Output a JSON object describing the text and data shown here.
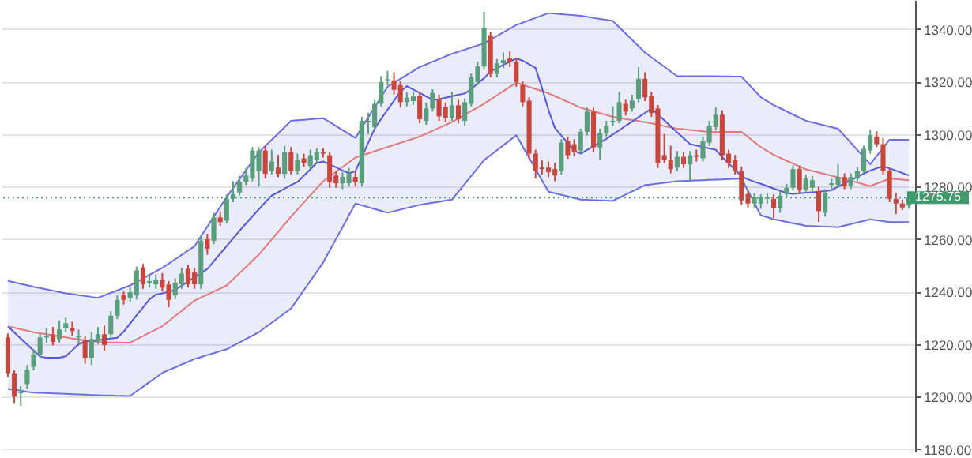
{
  "chart_data": {
    "type": "candlestick",
    "categories": [
      null,
      null,
      null,
      null,
      null,
      null,
      null,
      null,
      null,
      null,
      null,
      null,
      null,
      null,
      null,
      null,
      null,
      null,
      null,
      null,
      null,
      null,
      null,
      null,
      null,
      null,
      null,
      null,
      null,
      null,
      null,
      null,
      null,
      null,
      null,
      null,
      null,
      null,
      null,
      null,
      null,
      null,
      null,
      null,
      null,
      null,
      null,
      null,
      null,
      null,
      null,
      null,
      null,
      null,
      null,
      null,
      null,
      null,
      null,
      null,
      null,
      null,
      null,
      null,
      null,
      null,
      null,
      null,
      null,
      null,
      null,
      null,
      null,
      null,
      null,
      null,
      null,
      null,
      null,
      null,
      null,
      null,
      null,
      null,
      null,
      null,
      null,
      null,
      null,
      null,
      null,
      null,
      null,
      null,
      null,
      null,
      null,
      null,
      null,
      null,
      null,
      null,
      null,
      null,
      null,
      null,
      null,
      null,
      null,
      null,
      null,
      null,
      null,
      null,
      null,
      null,
      null,
      null,
      null,
      null,
      null,
      null,
      null,
      null,
      null,
      null,
      null,
      null,
      null,
      null,
      null,
      null,
      null,
      null,
      null,
      null,
      null,
      null,
      null,
      null,
      null
    ],
    "ohlc": [
      [
        1222.5,
        1224.0,
        1207.4,
        1208.9
      ],
      [
        1208.9,
        1210.0,
        1197.5,
        1200.0
      ],
      [
        1201.2,
        1204.0,
        1196.5,
        1201.8
      ],
      [
        1204.7,
        1212.0,
        1203.0,
        1210.1
      ],
      [
        1211.3,
        1218.0,
        1210.0,
        1216.0
      ],
      [
        1216.0,
        1224.0,
        1215.0,
        1222.5
      ],
      [
        1222.5,
        1226.0,
        1220.5,
        1223.1
      ],
      [
        1223.7,
        1226.5,
        1219.5,
        1220.8
      ],
      [
        1221.9,
        1229.0,
        1220.5,
        1225.5
      ],
      [
        1226.1,
        1230.0,
        1224.5,
        1227.9
      ],
      [
        1226.1,
        1228.5,
        1223.0,
        1224.9
      ],
      [
        1222.5,
        1225.5,
        1220.0,
        1223.1
      ],
      [
        1221.3,
        1223.0,
        1212.5,
        1214.8
      ],
      [
        1214.8,
        1224.5,
        1212.0,
        1221.9
      ],
      [
        1221.3,
        1226.5,
        1220.0,
        1223.7
      ],
      [
        1223.7,
        1227.0,
        1217.5,
        1219.6
      ],
      [
        1223.7,
        1232.5,
        1222.5,
        1230.8
      ],
      [
        1230.8,
        1238.5,
        1229.5,
        1236.8
      ],
      [
        1238.5,
        1240.0,
        1235.0,
        1236.8
      ],
      [
        1237.4,
        1241.5,
        1236.0,
        1239.7
      ],
      [
        1238.5,
        1249.5,
        1237.0,
        1248.0
      ],
      [
        1249.2,
        1250.5,
        1241.0,
        1242.7
      ],
      [
        1243.3,
        1246.0,
        1241.5,
        1243.9
      ],
      [
        1242.7,
        1246.5,
        1241.0,
        1244.5
      ],
      [
        1244.5,
        1247.0,
        1240.0,
        1241.5
      ],
      [
        1242.7,
        1244.0,
        1234.0,
        1236.8
      ],
      [
        1238.5,
        1245.0,
        1237.0,
        1243.3
      ],
      [
        1242.7,
        1249.0,
        1241.0,
        1246.8
      ],
      [
        1248.6,
        1250.0,
        1241.5,
        1242.7
      ],
      [
        1247.4,
        1249.0,
        1241.0,
        1242.7
      ],
      [
        1242.7,
        1261.0,
        1241.0,
        1259.3
      ],
      [
        1259.9,
        1262.0,
        1254.0,
        1256.3
      ],
      [
        1259.3,
        1270.0,
        1258.0,
        1268.2
      ],
      [
        1268.2,
        1270.5,
        1265.0,
        1266.4
      ],
      [
        1267.0,
        1277.0,
        1266.0,
        1275.3
      ],
      [
        1275.3,
        1282.0,
        1274.0,
        1277.1
      ],
      [
        1277.7,
        1284.0,
        1276.5,
        1281.8
      ],
      [
        1281.8,
        1287.0,
        1280.5,
        1284.2
      ],
      [
        1283.0,
        1295.0,
        1282.0,
        1293.7
      ],
      [
        1286.0,
        1295.0,
        1280.0,
        1293.7
      ],
      [
        1293.7,
        1295.5,
        1283.0,
        1284.8
      ],
      [
        1286.0,
        1294.0,
        1284.5,
        1289.5
      ],
      [
        1287.2,
        1292.0,
        1283.5,
        1284.8
      ],
      [
        1284.8,
        1295.5,
        1283.0,
        1293.1
      ],
      [
        1293.1,
        1295.0,
        1284.5,
        1286.0
      ],
      [
        1286.0,
        1292.5,
        1284.5,
        1290.1
      ],
      [
        1290.7,
        1292.5,
        1287.5,
        1289.0
      ],
      [
        1287.8,
        1294.0,
        1286.5,
        1291.9
      ],
      [
        1290.1,
        1294.5,
        1289.0,
        1293.1
      ],
      [
        1293.1,
        1294.5,
        1291.0,
        1292.5
      ],
      [
        1291.9,
        1293.0,
        1279.5,
        1281.8
      ],
      [
        1284.2,
        1286.0,
        1279.5,
        1281.2
      ],
      [
        1281.2,
        1285.5,
        1279.0,
        1283.6
      ],
      [
        1281.2,
        1287.0,
        1280.0,
        1284.8
      ],
      [
        1283.6,
        1285.5,
        1280.0,
        1281.8
      ],
      [
        1281.2,
        1306.5,
        1280.0,
        1305.0
      ],
      [
        1304.4,
        1308.0,
        1300.0,
        1305.0
      ],
      [
        1302.6,
        1313.0,
        1301.5,
        1311.5
      ],
      [
        1311.5,
        1322.0,
        1310.5,
        1319.8
      ],
      [
        1320.4,
        1324.0,
        1318.5,
        1320.8
      ],
      [
        1320.4,
        1323.5,
        1315.0,
        1316.8
      ],
      [
        1318.6,
        1320.0,
        1310.0,
        1312.1
      ],
      [
        1312.1,
        1316.0,
        1310.5,
        1313.9
      ],
      [
        1312.5,
        1316.0,
        1311.0,
        1314.4
      ],
      [
        1314.4,
        1316.0,
        1304.0,
        1305.6
      ],
      [
        1305.0,
        1312.0,
        1303.5,
        1309.7
      ],
      [
        1309.7,
        1317.0,
        1308.5,
        1315.6
      ],
      [
        1313.3,
        1315.0,
        1305.0,
        1306.7
      ],
      [
        1310.3,
        1312.0,
        1304.5,
        1306.1
      ],
      [
        1306.1,
        1316.0,
        1305.0,
        1310.9
      ],
      [
        1310.9,
        1313.0,
        1304.0,
        1305.6
      ],
      [
        1305.0,
        1313.5,
        1303.0,
        1312.1
      ],
      [
        1311.5,
        1323.0,
        1310.5,
        1321.6
      ],
      [
        1319.8,
        1327.5,
        1318.5,
        1325.7
      ],
      [
        1325.7,
        1346.5,
        1324.5,
        1340.5
      ],
      [
        1337.6,
        1339.0,
        1321.5,
        1322.8
      ],
      [
        1322.8,
        1328.5,
        1321.5,
        1326.9
      ],
      [
        1326.9,
        1331.0,
        1325.0,
        1328.1
      ],
      [
        1328.7,
        1331.5,
        1325.5,
        1327.5
      ],
      [
        1327.5,
        1329.0,
        1318.0,
        1319.8
      ],
      [
        1318.6,
        1320.0,
        1310.5,
        1312.1
      ],
      [
        1312.7,
        1314.0,
        1290.5,
        1292.5
      ],
      [
        1292.5,
        1294.0,
        1283.0,
        1286.0
      ],
      [
        1287.2,
        1290.0,
        1284.5,
        1286.6
      ],
      [
        1287.2,
        1289.5,
        1283.5,
        1285.4
      ],
      [
        1286.6,
        1289.0,
        1282.0,
        1284.2
      ],
      [
        1286.0,
        1298.0,
        1284.5,
        1296.7
      ],
      [
        1297.3,
        1299.0,
        1290.5,
        1291.9
      ],
      [
        1296.1,
        1298.0,
        1291.5,
        1293.0
      ],
      [
        1293.7,
        1302.0,
        1292.5,
        1300.8
      ],
      [
        1300.8,
        1310.0,
        1299.5,
        1308.5
      ],
      [
        1308.5,
        1310.0,
        1293.0,
        1294.9
      ],
      [
        1294.9,
        1302.0,
        1290.0,
        1300.2
      ],
      [
        1300.2,
        1305.0,
        1299.0,
        1303.2
      ],
      [
        1304.4,
        1310.5,
        1303.0,
        1305.0
      ],
      [
        1305.0,
        1316.0,
        1304.0,
        1312.1
      ],
      [
        1311.5,
        1313.0,
        1307.0,
        1308.5
      ],
      [
        1309.7,
        1315.0,
        1308.5,
        1312.7
      ],
      [
        1313.3,
        1325.5,
        1312.0,
        1321.0
      ],
      [
        1321.0,
        1323.5,
        1312.5,
        1313.9
      ],
      [
        1314.4,
        1316.0,
        1306.5,
        1307.9
      ],
      [
        1309.7,
        1311.0,
        1287.0,
        1288.9
      ],
      [
        1291.9,
        1300.0,
        1289.0,
        1290.1
      ],
      [
        1290.1,
        1295.5,
        1285.0,
        1286.6
      ],
      [
        1287.2,
        1293.5,
        1286.0,
        1291.3
      ],
      [
        1291.3,
        1293.0,
        1287.0,
        1288.4
      ],
      [
        1288.4,
        1293.5,
        1282.0,
        1291.9
      ],
      [
        1291.9,
        1294.0,
        1289.5,
        1291.3
      ],
      [
        1290.7,
        1299.0,
        1289.5,
        1297.3
      ],
      [
        1296.7,
        1305.0,
        1295.5,
        1303.2
      ],
      [
        1302.6,
        1310.0,
        1301.5,
        1307.3
      ],
      [
        1307.3,
        1309.0,
        1290.0,
        1291.9
      ],
      [
        1292.5,
        1294.0,
        1287.0,
        1288.9
      ],
      [
        1290.1,
        1292.0,
        1284.5,
        1286.0
      ],
      [
        1286.0,
        1287.5,
        1273.0,
        1274.7
      ],
      [
        1277.1,
        1278.5,
        1272.0,
        1273.5
      ],
      [
        1273.5,
        1277.5,
        1272.0,
        1275.9
      ],
      [
        1273.5,
        1277.0,
        1271.5,
        1275.9
      ],
      [
        1275.3,
        1277.5,
        1273.5,
        1275.9
      ],
      [
        1275.3,
        1277.0,
        1268.0,
        1271.8
      ],
      [
        1271.8,
        1278.0,
        1270.0,
        1276.5
      ],
      [
        1277.1,
        1281.0,
        1276.0,
        1279.5
      ],
      [
        1279.5,
        1288.0,
        1278.5,
        1286.6
      ],
      [
        1286.6,
        1288.0,
        1277.5,
        1278.9
      ],
      [
        1278.9,
        1284.5,
        1277.5,
        1283.0
      ],
      [
        1279.5,
        1284.0,
        1278.0,
        1282.4
      ],
      [
        1278.3,
        1280.0,
        1266.5,
        1270.6
      ],
      [
        1270.0,
        1279.0,
        1268.5,
        1277.7
      ],
      [
        1280.6,
        1283.0,
        1279.0,
        1281.2
      ],
      [
        1280.6,
        1288.5,
        1279.5,
        1283.6
      ],
      [
        1283.6,
        1285.0,
        1279.0,
        1280.1
      ],
      [
        1280.1,
        1285.0,
        1279.0,
        1283.6
      ],
      [
        1283.0,
        1287.5,
        1282.0,
        1286.0
      ],
      [
        1286.0,
        1295.5,
        1285.0,
        1294.3
      ],
      [
        1293.7,
        1301.5,
        1292.5,
        1299.6
      ],
      [
        1299.0,
        1301.0,
        1295.0,
        1296.1
      ],
      [
        1296.1,
        1298.5,
        1284.5,
        1286.0
      ],
      [
        1286.0,
        1287.0,
        1274.0,
        1275.3
      ],
      [
        1275.3,
        1277.5,
        1269.5,
        1273.5
      ],
      [
        1273.5,
        1275.0,
        1271.0,
        1272.0
      ],
      [
        1272.8,
        1276.5,
        1271.5,
        1275.75
      ]
    ],
    "colors": [
      "#c8473c",
      "#c8473c",
      "#5a9e7c",
      "#5a9e7c",
      "#5a9e7c",
      "#5a9e7c",
      "#5a9e7c",
      "#c8473c",
      "#5a9e7c",
      "#5a9e7c",
      "#c8473c",
      "#5a9e7c",
      "#c8473c",
      "#5a9e7c",
      "#5a9e7c",
      "#c8473c",
      "#5a9e7c",
      "#5a9e7c",
      "#c8473c",
      "#5a9e7c",
      "#5a9e7c",
      "#c8473c",
      "#5a9e7c",
      "#5a9e7c",
      "#c8473c",
      "#c8473c",
      "#5a9e7c",
      "#5a9e7c",
      "#c8473c",
      "#c8473c",
      "#5a9e7c",
      "#c8473c",
      "#5a9e7c",
      "#c8473c",
      "#5a9e7c",
      "#5a9e7c",
      "#5a9e7c",
      "#5a9e7c",
      "#5a9e7c",
      "#5a9e7c",
      "#c8473c",
      "#5a9e7c",
      "#c8473c",
      "#5a9e7c",
      "#c8473c",
      "#5a9e7c",
      "#c8473c",
      "#5a9e7c",
      "#5a9e7c",
      "#c8473c",
      "#c8473c",
      "#c8473c",
      "#5a9e7c",
      "#5a9e7c",
      "#c8473c",
      "#5a9e7c",
      "#5a9e7c",
      "#5a9e7c",
      "#5a9e7c",
      "#5a9e7c",
      "#c8473c",
      "#c8473c",
      "#5a9e7c",
      "#5a9e7c",
      "#c8473c",
      "#5a9e7c",
      "#5a9e7c",
      "#c8473c",
      "#c8473c",
      "#5a9e7c",
      "#c8473c",
      "#5a9e7c",
      "#5a9e7c",
      "#5a9e7c",
      "#5a9e7c",
      "#c8473c",
      "#5a9e7c",
      "#5a9e7c",
      "#c8473c",
      "#c8473c",
      "#c8473c",
      "#c8473c",
      "#c8473c",
      "#c8473c",
      "#c8473c",
      "#c8473c",
      "#5a9e7c",
      "#c8473c",
      "#c8473c",
      "#5a9e7c",
      "#5a9e7c",
      "#c8473c",
      "#5a9e7c",
      "#5a9e7c",
      "#5a9e7c",
      "#5a9e7c",
      "#c8473c",
      "#5a9e7c",
      "#5a9e7c",
      "#c8473c",
      "#c8473c",
      "#c8473c",
      "#c8473c",
      "#c8473c",
      "#5a9e7c",
      "#c8473c",
      "#5a9e7c",
      "#c8473c",
      "#5a9e7c",
      "#5a9e7c",
      "#5a9e7c",
      "#c8473c",
      "#c8473c",
      "#c8473c",
      "#c8473c",
      "#c8473c",
      "#5a9e7c",
      "#5a9e7c",
      "#5a9e7c",
      "#c8473c",
      "#5a9e7c",
      "#5a9e7c",
      "#5a9e7c",
      "#c8473c",
      "#5a9e7c",
      "#5a9e7c",
      "#c8473c",
      "#5a9e7c",
      "#5a9e7c",
      "#5a9e7c",
      "#c8473c",
      "#5a9e7c",
      "#5a9e7c",
      "#5a9e7c",
      "#5a9e7c",
      "#c8473c",
      "#c8473c",
      "#c8473c",
      "#c8473c",
      "#c8473c",
      "#5a9e7c"
    ],
    "series": [
      {
        "type": "line",
        "color": "#6b6ee0",
        "values": [
          1244.0,
          1243.5,
          1242.9,
          1242.4,
          1241.8,
          1241.3,
          1240.8,
          1240.3,
          1239.8,
          1239.3,
          1239.0,
          1238.6,
          1238.3,
          1237.9,
          1237.6,
          1238.5,
          1239.5,
          1240.4,
          1241.4,
          1242.3,
          1243.6,
          1245.0,
          1246.3,
          1247.7,
          1249.0,
          1250.6,
          1252.3,
          1253.9,
          1255.6,
          1257.2,
          1261.0,
          1264.7,
          1268.5,
          1272.2,
          1276.0,
          1279.4,
          1282.8,
          1286.2,
          1289.6,
          1293.0,
          1295.4,
          1297.8,
          1300.2,
          1302.6,
          1305.0,
          1305.2,
          1305.4,
          1305.6,
          1305.8,
          1306.0,
          1304.5,
          1303.0,
          1301.5,
          1300.0,
          1298.5,
          1302.4,
          1306.3,
          1310.2,
          1314.1,
          1318.0,
          1319.5,
          1321.0,
          1322.5,
          1324.0,
          1325.5,
          1326.5,
          1327.5,
          1328.5,
          1329.5,
          1330.5,
          1331.3,
          1332.1,
          1332.9,
          1333.7,
          1334.5,
          1335.9,
          1337.3,
          1338.7,
          1340.1,
          1341.5,
          1342.4,
          1343.3,
          1344.2,
          1345.1,
          1346.0,
          1345.8,
          1345.6,
          1345.4,
          1345.2,
          1345.0,
          1344.6,
          1344.2,
          1343.8,
          1343.4,
          1343.0,
          1340.6,
          1338.2,
          1335.8,
          1333.4,
          1331.0,
          1329.2,
          1327.4,
          1325.6,
          1323.8,
          1322.0,
          1322.0,
          1322.0,
          1322.0,
          1322.0,
          1322.0,
          1322.0,
          1321.9,
          1321.9,
          1321.8,
          1321.8,
          1319.2,
          1316.6,
          1314.0,
          1312.5,
          1311.0,
          1309.8,
          1308.6,
          1307.4,
          1306.2,
          1305.0,
          1304.4,
          1303.8,
          1303.2,
          1302.6,
          1302.0,
          1299.3,
          1296.6,
          1293.9,
          1291.2,
          1288.5,
          1291.6,
          1294.7,
          1297.8,
          1297.8,
          1297.8,
          1297.8
        ],
        "upper": [
          1244.0,
          1243.5,
          1242.9,
          1242.4,
          1241.8,
          1241.3,
          1240.8,
          1240.3,
          1239.8,
          1239.3,
          1239.0,
          1238.6,
          1238.3,
          1237.9,
          1237.6,
          1238.5,
          1239.5,
          1240.4,
          1241.4,
          1242.3,
          1243.6,
          1245.0,
          1246.3,
          1247.7,
          1249.0,
          1250.6,
          1252.3,
          1253.9,
          1255.6,
          1257.2,
          1261.0,
          1264.7,
          1268.5,
          1272.2,
          1276.0,
          1279.4,
          1282.8,
          1286.2,
          1289.6,
          1293.0,
          1295.4,
          1297.8,
          1300.2,
          1302.6,
          1305.0,
          1305.2,
          1305.4,
          1305.6,
          1305.8,
          1306.0,
          1304.5,
          1303.0,
          1301.5,
          1300.0,
          1298.5,
          1302.4,
          1306.3,
          1310.2,
          1314.1,
          1318.0,
          1319.5,
          1321.0,
          1322.5,
          1324.0,
          1325.5,
          1326.5,
          1327.5,
          1328.5,
          1329.5,
          1330.5,
          1331.3,
          1332.1,
          1332.9,
          1333.7,
          1334.5,
          1335.9,
          1337.3,
          1338.7,
          1340.1,
          1341.5,
          1342.4,
          1343.3,
          1344.2,
          1345.1,
          1346.0,
          1345.8,
          1345.6,
          1345.4,
          1345.2,
          1345.0,
          1344.6,
          1344.2,
          1343.8,
          1343.4,
          1343.0,
          1340.6,
          1338.2,
          1335.8,
          1333.4,
          1331.0,
          1329.2,
          1327.4,
          1325.6,
          1323.8,
          1322.0,
          1322.0,
          1322.0,
          1322.0,
          1322.0,
          1322.0,
          1322.0,
          1321.9,
          1321.9,
          1321.8,
          1321.8,
          1319.2,
          1316.6,
          1314.0,
          1312.5,
          1311.0,
          1309.8,
          1308.6,
          1307.4,
          1306.2,
          1305.0,
          1304.4,
          1303.8,
          1303.2,
          1302.6,
          1302.0,
          1299.3,
          1296.6,
          1293.9,
          1291.2,
          1288.5,
          1291.6,
          1294.7,
          1297.8,
          1297.8,
          1297.8,
          1297.8
        ],
        "lower": [
          1202.9,
          1202.5,
          1202.2,
          1201.8,
          1201.5,
          1201.4,
          1201.3,
          1201.2,
          1201.1,
          1201.0,
          1200.9,
          1200.8,
          1200.7,
          1200.6,
          1200.5,
          1200.4,
          1200.4,
          1200.3,
          1200.3,
          1200.2,
          1202.0,
          1203.7,
          1205.5,
          1207.2,
          1209.0,
          1210.1,
          1211.1,
          1212.2,
          1213.2,
          1214.3,
          1215.0,
          1215.8,
          1216.5,
          1217.3,
          1218.0,
          1219.3,
          1220.6,
          1221.9,
          1223.2,
          1224.5,
          1226.3,
          1228.1,
          1229.9,
          1231.7,
          1233.5,
          1237.0,
          1240.5,
          1244.0,
          1247.5,
          1251.0,
          1255.5,
          1260.0,
          1264.5,
          1269.0,
          1273.5,
          1272.8,
          1272.1,
          1271.4,
          1270.7,
          1270.0,
          1270.6,
          1271.2,
          1271.8,
          1272.4,
          1273.0,
          1273.4,
          1273.8,
          1274.2,
          1274.6,
          1275.0,
          1278.0,
          1281.0,
          1284.0,
          1287.0,
          1290.0,
          1291.9,
          1293.8,
          1295.7,
          1297.6,
          1299.5,
          1295.2,
          1290.9,
          1286.6,
          1282.3,
          1278.0,
          1277.4,
          1276.8,
          1276.2,
          1275.6,
          1275.0,
          1274.9,
          1274.8,
          1274.7,
          1274.6,
          1274.5,
          1275.7,
          1276.9,
          1278.1,
          1279.3,
          1280.5,
          1280.8,
          1281.1,
          1281.4,
          1281.7,
          1282.0,
          1282.1,
          1282.2,
          1282.3,
          1282.4,
          1282.5,
          1282.6,
          1282.7,
          1282.8,
          1282.9,
          1283.0,
          1278.3,
          1273.7,
          1269.0,
          1268.3,
          1267.5,
          1267.0,
          1266.5,
          1266.0,
          1265.5,
          1265.0,
          1264.9,
          1264.8,
          1264.7,
          1264.6,
          1264.5,
          1265.1,
          1265.7,
          1266.3,
          1266.9,
          1267.5,
          1267.1,
          1266.8,
          1266.4,
          1266.4,
          1266.4,
          1266.4
        ]
      },
      {
        "type": "line",
        "color": "#6b6ee0",
        "values": [
          1202.9,
          1202.5,
          1202.2,
          1201.8,
          1201.5,
          1201.4,
          1201.3,
          1201.2,
          1201.1,
          1201.0,
          1200.9,
          1200.8,
          1200.7,
          1200.6,
          1200.5,
          1200.4,
          1200.4,
          1200.3,
          1200.3,
          1200.2,
          1202.0,
          1203.7,
          1205.5,
          1207.2,
          1209.0,
          1210.1,
          1211.1,
          1212.2,
          1213.2,
          1214.3,
          1215.0,
          1215.8,
          1216.5,
          1217.3,
          1218.0,
          1219.3,
          1220.6,
          1221.9,
          1223.2,
          1224.5,
          1226.3,
          1228.1,
          1229.9,
          1231.7,
          1233.5,
          1237.0,
          1240.5,
          1244.0,
          1247.5,
          1251.0,
          1255.5,
          1260.0,
          1264.5,
          1269.0,
          1273.5,
          1272.8,
          1272.1,
          1271.4,
          1270.7,
          1270.0,
          1270.6,
          1271.2,
          1271.8,
          1272.4,
          1273.0,
          1273.4,
          1273.8,
          1274.2,
          1274.6,
          1275.0,
          1278.0,
          1281.0,
          1284.0,
          1287.0,
          1290.0,
          1291.9,
          1293.8,
          1295.7,
          1297.6,
          1299.5,
          1295.2,
          1290.9,
          1286.6,
          1282.3,
          1278.0,
          1277.4,
          1276.8,
          1276.2,
          1275.6,
          1275.0,
          1274.9,
          1274.8,
          1274.7,
          1274.6,
          1274.5,
          1275.7,
          1276.9,
          1278.1,
          1279.3,
          1280.5,
          1280.8,
          1281.1,
          1281.4,
          1281.7,
          1282.0,
          1282.1,
          1282.2,
          1282.3,
          1282.4,
          1282.5,
          1282.6,
          1282.7,
          1282.8,
          1282.9,
          1283.0,
          1278.3,
          1273.7,
          1269.0,
          1268.3,
          1267.5,
          1267.0,
          1266.5,
          1266.0,
          1265.5,
          1265.0,
          1264.9,
          1264.8,
          1264.7,
          1264.6,
          1264.5,
          1265.1,
          1265.7,
          1266.3,
          1266.9,
          1267.5,
          1267.1,
          1266.8,
          1266.4,
          1266.4,
          1266.4,
          1266.4
        ]
      },
      {
        "type": "line",
        "color": "#e07a7a",
        "values": [
          1226.7,
          1226.2,
          1225.6,
          1225.1,
          1224.5,
          1224.1,
          1223.7,
          1223.3,
          1222.9,
          1222.5,
          1222.1,
          1221.8,
          1221.4,
          1221.1,
          1220.7,
          1220.7,
          1220.6,
          1220.6,
          1220.5,
          1220.5,
          1221.8,
          1223.0,
          1224.3,
          1225.5,
          1226.8,
          1228.7,
          1230.7,
          1232.6,
          1234.6,
          1236.5,
          1237.7,
          1238.8,
          1240.0,
          1241.1,
          1242.3,
          1244.6,
          1247.0,
          1249.3,
          1251.7,
          1254.0,
          1256.9,
          1259.8,
          1262.7,
          1265.6,
          1268.5,
          1271.2,
          1273.9,
          1276.6,
          1279.3,
          1282.0,
          1283.8,
          1285.6,
          1287.4,
          1289.2,
          1291.0,
          1291.8,
          1292.6,
          1293.4,
          1294.2,
          1295.0,
          1295.8,
          1296.6,
          1297.4,
          1298.2,
          1299.0,
          1300.1,
          1301.2,
          1302.3,
          1303.4,
          1304.5,
          1305.9,
          1307.3,
          1308.7,
          1310.1,
          1311.5,
          1313.1,
          1314.7,
          1316.3,
          1317.9,
          1319.5,
          1318.7,
          1317.9,
          1317.1,
          1316.3,
          1315.5,
          1314.4,
          1313.3,
          1312.2,
          1311.1,
          1310.0,
          1309.3,
          1308.6,
          1307.9,
          1307.2,
          1306.5,
          1306.1,
          1305.7,
          1305.3,
          1304.9,
          1304.5,
          1304.0,
          1303.5,
          1303.0,
          1302.5,
          1302.0,
          1301.8,
          1301.5,
          1301.3,
          1301.0,
          1300.8,
          1300.8,
          1300.8,
          1300.8,
          1300.8,
          1300.8,
          1298.9,
          1296.9,
          1295.0,
          1293.5,
          1292.0,
          1290.9,
          1289.8,
          1288.7,
          1287.6,
          1286.5,
          1285.9,
          1285.3,
          1284.7,
          1284.1,
          1283.5,
          1282.8,
          1282.1,
          1281.5,
          1280.8,
          1280.1,
          1281.1,
          1282.0,
          1283.0,
          1282.8,
          1282.6,
          1282.4
        ]
      },
      {
        "type": "line",
        "color": "#5457d8",
        "values": [
          1226.7,
          1224.4,
          1222.1,
          1219.8,
          1217.5,
          1215.2,
          1214.8,
          1214.8,
          1214.8,
          1215.3,
          1217.6,
          1219.9,
          1221.0,
          1221.2,
          1221.5,
          1221.8,
          1222.1,
          1222.4,
          1224.7,
          1227.8,
          1230.9,
          1233.9,
          1237.0,
          1238.8,
          1239.3,
          1239.9,
          1240.6,
          1242.2,
          1243.8,
          1245.4,
          1247.0,
          1248.6,
          1251.5,
          1254.4,
          1257.3,
          1260.2,
          1263.1,
          1265.9,
          1268.6,
          1271.3,
          1274.0,
          1276.5,
          1277.8,
          1279.2,
          1280.5,
          1281.7,
          1284.1,
          1286.5,
          1289.0,
          1289.5,
          1288.4,
          1287.3,
          1286.1,
          1285.0,
          1285.8,
          1291.2,
          1296.6,
          1302.0,
          1305.7,
          1309.2,
          1312.6,
          1316.1,
          1318.2,
          1316.9,
          1315.6,
          1314.3,
          1312.9,
          1313.2,
          1313.8,
          1314.3,
          1314.9,
          1315.4,
          1317.0,
          1319.3,
          1321.2,
          1323.8,
          1325.0,
          1326.3,
          1327.5,
          1328.7,
          1327.9,
          1326.5,
          1325.1,
          1317.5,
          1309.1,
          1302.3,
          1299.4,
          1296.5,
          1293.6,
          1292.5,
          1293.9,
          1295.3,
          1296.7,
          1298.1,
          1299.8,
          1301.4,
          1303.1,
          1304.7,
          1306.4,
          1308.0,
          1309.7,
          1307.4,
          1305.2,
          1302.9,
          1300.6,
          1298.4,
          1296.1,
          1295.6,
          1295.0,
          1294.5,
          1294.0,
          1291.2,
          1288.8,
          1286.3,
          1283.9,
          1282.7,
          1281.8,
          1281.0,
          1280.1,
          1279.2,
          1278.4,
          1277.5,
          1277.2,
          1277.4,
          1277.6,
          1277.8,
          1278.0,
          1278.2,
          1278.6,
          1279.9,
          1281.1,
          1282.4,
          1283.6,
          1284.9,
          1286.0,
          1286.9,
          1287.7,
          1286.9,
          1286.0,
          1285.1,
          1284.2
        ]
      }
    ],
    "ylim": [
      1179,
      1351
    ],
    "yticks": [
      {
        "value": 1180,
        "label": "1180.00"
      },
      {
        "value": 1200,
        "label": "1200.00"
      },
      {
        "value": 1220,
        "label": "1220.00"
      },
      {
        "value": 1240,
        "label": "1240.00"
      },
      {
        "value": 1260,
        "label": "1260.00"
      },
      {
        "value": 1280,
        "label": "1280.00"
      },
      {
        "value": 1300,
        "label": "1300.00"
      },
      {
        "value": 1320,
        "label": "1320.00"
      },
      {
        "value": 1340,
        "label": "1340.00"
      }
    ],
    "tick_labels": "y",
    "grid": "y",
    "ref_lines": [
      {
        "axis": "y",
        "value": 1275.75,
        "label": "1275.75",
        "color": "#3f9a6c",
        "line_style": "dotted"
      }
    ]
  }
}
